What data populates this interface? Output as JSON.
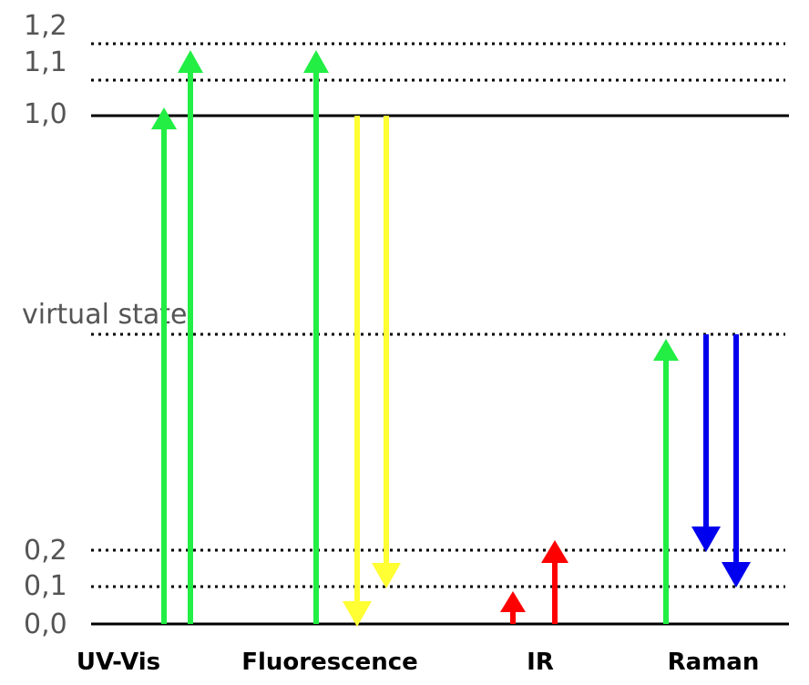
{
  "levels": {
    "l0_0": "0,0",
    "l0_1": "0,1",
    "l0_2": "0,2",
    "l1_0": "1,0",
    "l1_1": "1,1",
    "l1_2": "1,2",
    "virtual": "virtual state"
  },
  "methods": {
    "uvvis": "UV-Vis",
    "fluorescence": "Fluorescence",
    "ir": "IR",
    "raman": "Raman"
  },
  "colors": {
    "excitation": "#22ee44",
    "emission": "#ffff33",
    "ir": "#ff0000",
    "raman_scatter": "#0000ee",
    "level_line": "#000000",
    "label_text": "#555555"
  },
  "arrows": {
    "uvvis": [
      {
        "from": "0,0",
        "to": "1,0",
        "direction": "up",
        "color_key": "excitation"
      },
      {
        "from": "0,0",
        "to": "1,2",
        "direction": "up",
        "color_key": "excitation"
      }
    ],
    "fluorescence": [
      {
        "from": "0,0",
        "to": "1,2",
        "direction": "up",
        "color_key": "excitation"
      },
      {
        "from": "1,0",
        "to": "0,0",
        "direction": "down",
        "color_key": "emission"
      },
      {
        "from": "1,0",
        "to": "0,1",
        "direction": "down",
        "color_key": "emission"
      }
    ],
    "ir": [
      {
        "from": "0,0",
        "to": "0,1",
        "direction": "up",
        "color_key": "ir"
      },
      {
        "from": "0,0",
        "to": "0,2",
        "direction": "up",
        "color_key": "ir"
      }
    ],
    "raman": [
      {
        "from": "0,0",
        "to": "virtual state",
        "direction": "up",
        "color_key": "excitation"
      },
      {
        "from": "virtual state",
        "to": "0,2",
        "direction": "down",
        "color_key": "raman_scatter"
      },
      {
        "from": "virtual state",
        "to": "0,1",
        "direction": "down",
        "color_key": "raman_scatter"
      }
    ]
  }
}
